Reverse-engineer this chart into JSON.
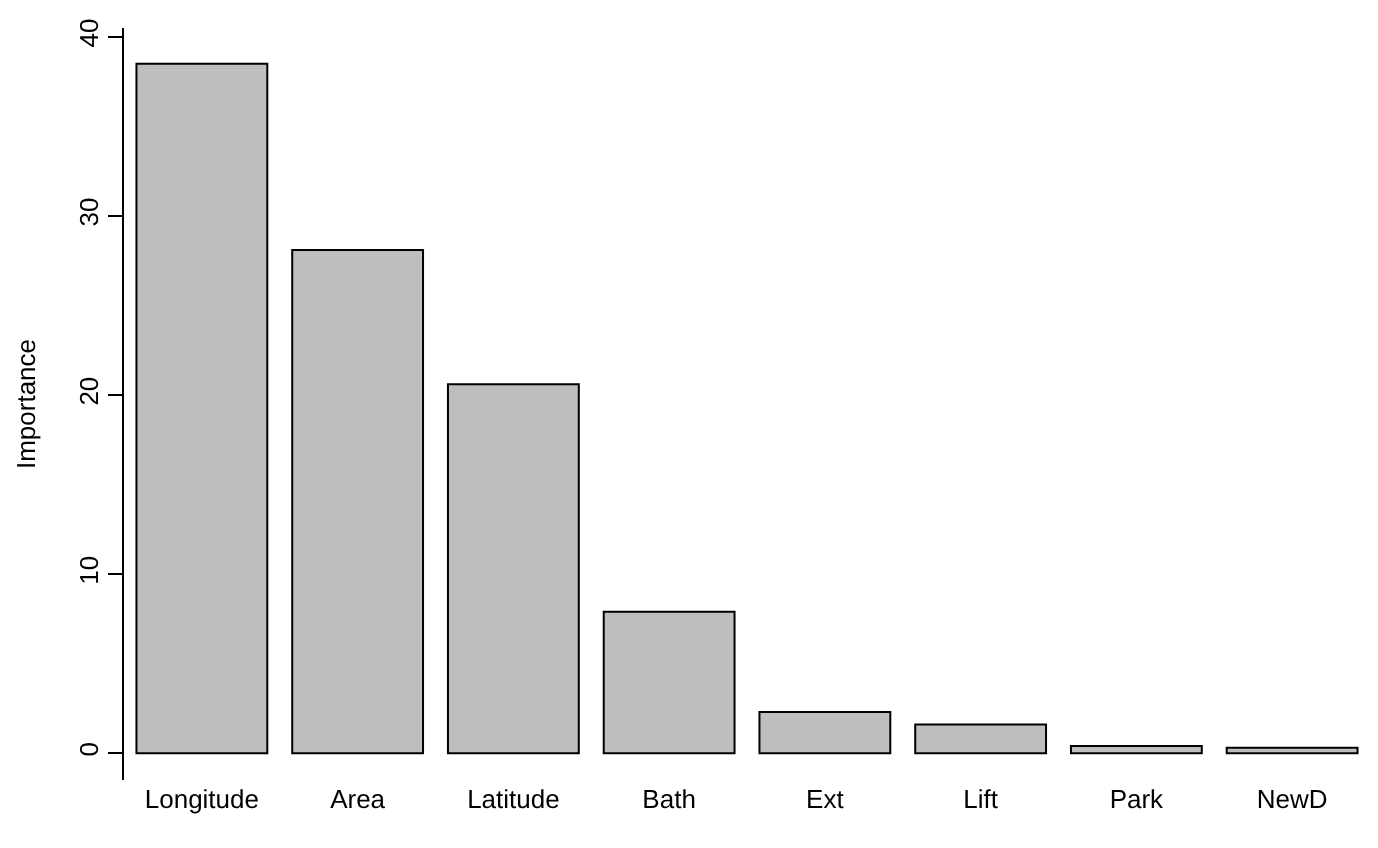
{
  "chart_data": {
    "type": "bar",
    "ylabel": "Importance",
    "categories": [
      "Longitude",
      "Area",
      "Latitude",
      "Bath",
      "Ext",
      "Lift",
      "Park",
      "NewD"
    ],
    "values": [
      38.5,
      28.1,
      20.6,
      7.9,
      2.3,
      1.6,
      0.4,
      0.3
    ],
    "color": "#bebebe",
    "ylim": [
      -1.5,
      40.5
    ],
    "yticks": [
      0,
      10,
      20,
      30,
      40
    ]
  }
}
